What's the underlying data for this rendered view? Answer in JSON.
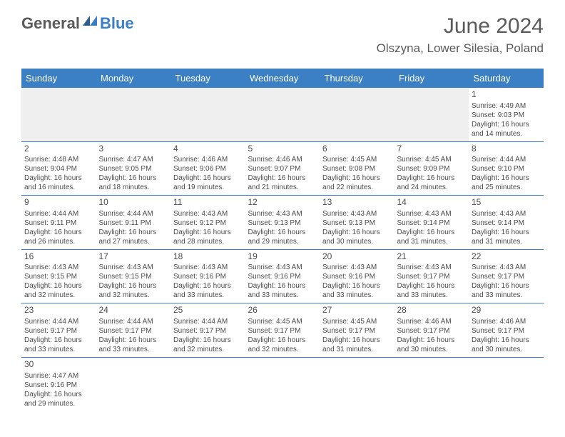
{
  "brand": {
    "part1": "General",
    "part2": "Blue"
  },
  "title": "June 2024",
  "location": "Olszyna, Lower Silesia, Poland",
  "colors": {
    "header_bg": "#3b7fc4",
    "header_text": "#ffffff",
    "text": "#4a4a4a",
    "logo_gray": "#5a5a5a",
    "logo_blue": "#3b7fc4",
    "blank_bg": "#efefef"
  },
  "typography": {
    "title_fontsize": 30,
    "location_fontsize": 17,
    "dayheader_fontsize": 13,
    "cell_fontsize": 10,
    "daynum_fontsize": 12
  },
  "day_headers": [
    "Sunday",
    "Monday",
    "Tuesday",
    "Wednesday",
    "Thursday",
    "Friday",
    "Saturday"
  ],
  "weeks": [
    [
      null,
      null,
      null,
      null,
      null,
      null,
      {
        "n": "1",
        "sr": "Sunrise: 4:49 AM",
        "ss": "Sunset: 9:03 PM",
        "d1": "Daylight: 16 hours",
        "d2": "and 14 minutes."
      }
    ],
    [
      {
        "n": "2",
        "sr": "Sunrise: 4:48 AM",
        "ss": "Sunset: 9:04 PM",
        "d1": "Daylight: 16 hours",
        "d2": "and 16 minutes."
      },
      {
        "n": "3",
        "sr": "Sunrise: 4:47 AM",
        "ss": "Sunset: 9:05 PM",
        "d1": "Daylight: 16 hours",
        "d2": "and 18 minutes."
      },
      {
        "n": "4",
        "sr": "Sunrise: 4:46 AM",
        "ss": "Sunset: 9:06 PM",
        "d1": "Daylight: 16 hours",
        "d2": "and 19 minutes."
      },
      {
        "n": "5",
        "sr": "Sunrise: 4:46 AM",
        "ss": "Sunset: 9:07 PM",
        "d1": "Daylight: 16 hours",
        "d2": "and 21 minutes."
      },
      {
        "n": "6",
        "sr": "Sunrise: 4:45 AM",
        "ss": "Sunset: 9:08 PM",
        "d1": "Daylight: 16 hours",
        "d2": "and 22 minutes."
      },
      {
        "n": "7",
        "sr": "Sunrise: 4:45 AM",
        "ss": "Sunset: 9:09 PM",
        "d1": "Daylight: 16 hours",
        "d2": "and 24 minutes."
      },
      {
        "n": "8",
        "sr": "Sunrise: 4:44 AM",
        "ss": "Sunset: 9:10 PM",
        "d1": "Daylight: 16 hours",
        "d2": "and 25 minutes."
      }
    ],
    [
      {
        "n": "9",
        "sr": "Sunrise: 4:44 AM",
        "ss": "Sunset: 9:11 PM",
        "d1": "Daylight: 16 hours",
        "d2": "and 26 minutes."
      },
      {
        "n": "10",
        "sr": "Sunrise: 4:44 AM",
        "ss": "Sunset: 9:11 PM",
        "d1": "Daylight: 16 hours",
        "d2": "and 27 minutes."
      },
      {
        "n": "11",
        "sr": "Sunrise: 4:43 AM",
        "ss": "Sunset: 9:12 PM",
        "d1": "Daylight: 16 hours",
        "d2": "and 28 minutes."
      },
      {
        "n": "12",
        "sr": "Sunrise: 4:43 AM",
        "ss": "Sunset: 9:13 PM",
        "d1": "Daylight: 16 hours",
        "d2": "and 29 minutes."
      },
      {
        "n": "13",
        "sr": "Sunrise: 4:43 AM",
        "ss": "Sunset: 9:13 PM",
        "d1": "Daylight: 16 hours",
        "d2": "and 30 minutes."
      },
      {
        "n": "14",
        "sr": "Sunrise: 4:43 AM",
        "ss": "Sunset: 9:14 PM",
        "d1": "Daylight: 16 hours",
        "d2": "and 31 minutes."
      },
      {
        "n": "15",
        "sr": "Sunrise: 4:43 AM",
        "ss": "Sunset: 9:14 PM",
        "d1": "Daylight: 16 hours",
        "d2": "and 31 minutes."
      }
    ],
    [
      {
        "n": "16",
        "sr": "Sunrise: 4:43 AM",
        "ss": "Sunset: 9:15 PM",
        "d1": "Daylight: 16 hours",
        "d2": "and 32 minutes."
      },
      {
        "n": "17",
        "sr": "Sunrise: 4:43 AM",
        "ss": "Sunset: 9:15 PM",
        "d1": "Daylight: 16 hours",
        "d2": "and 32 minutes."
      },
      {
        "n": "18",
        "sr": "Sunrise: 4:43 AM",
        "ss": "Sunset: 9:16 PM",
        "d1": "Daylight: 16 hours",
        "d2": "and 33 minutes."
      },
      {
        "n": "19",
        "sr": "Sunrise: 4:43 AM",
        "ss": "Sunset: 9:16 PM",
        "d1": "Daylight: 16 hours",
        "d2": "and 33 minutes."
      },
      {
        "n": "20",
        "sr": "Sunrise: 4:43 AM",
        "ss": "Sunset: 9:16 PM",
        "d1": "Daylight: 16 hours",
        "d2": "and 33 minutes."
      },
      {
        "n": "21",
        "sr": "Sunrise: 4:43 AM",
        "ss": "Sunset: 9:17 PM",
        "d1": "Daylight: 16 hours",
        "d2": "and 33 minutes."
      },
      {
        "n": "22",
        "sr": "Sunrise: 4:43 AM",
        "ss": "Sunset: 9:17 PM",
        "d1": "Daylight: 16 hours",
        "d2": "and 33 minutes."
      }
    ],
    [
      {
        "n": "23",
        "sr": "Sunrise: 4:44 AM",
        "ss": "Sunset: 9:17 PM",
        "d1": "Daylight: 16 hours",
        "d2": "and 33 minutes."
      },
      {
        "n": "24",
        "sr": "Sunrise: 4:44 AM",
        "ss": "Sunset: 9:17 PM",
        "d1": "Daylight: 16 hours",
        "d2": "and 33 minutes."
      },
      {
        "n": "25",
        "sr": "Sunrise: 4:44 AM",
        "ss": "Sunset: 9:17 PM",
        "d1": "Daylight: 16 hours",
        "d2": "and 32 minutes."
      },
      {
        "n": "26",
        "sr": "Sunrise: 4:45 AM",
        "ss": "Sunset: 9:17 PM",
        "d1": "Daylight: 16 hours",
        "d2": "and 32 minutes."
      },
      {
        "n": "27",
        "sr": "Sunrise: 4:45 AM",
        "ss": "Sunset: 9:17 PM",
        "d1": "Daylight: 16 hours",
        "d2": "and 31 minutes."
      },
      {
        "n": "28",
        "sr": "Sunrise: 4:46 AM",
        "ss": "Sunset: 9:17 PM",
        "d1": "Daylight: 16 hours",
        "d2": "and 30 minutes."
      },
      {
        "n": "29",
        "sr": "Sunrise: 4:46 AM",
        "ss": "Sunset: 9:17 PM",
        "d1": "Daylight: 16 hours",
        "d2": "and 30 minutes."
      }
    ],
    [
      {
        "n": "30",
        "sr": "Sunrise: 4:47 AM",
        "ss": "Sunset: 9:16 PM",
        "d1": "Daylight: 16 hours",
        "d2": "and 29 minutes."
      },
      null,
      null,
      null,
      null,
      null,
      null
    ]
  ]
}
